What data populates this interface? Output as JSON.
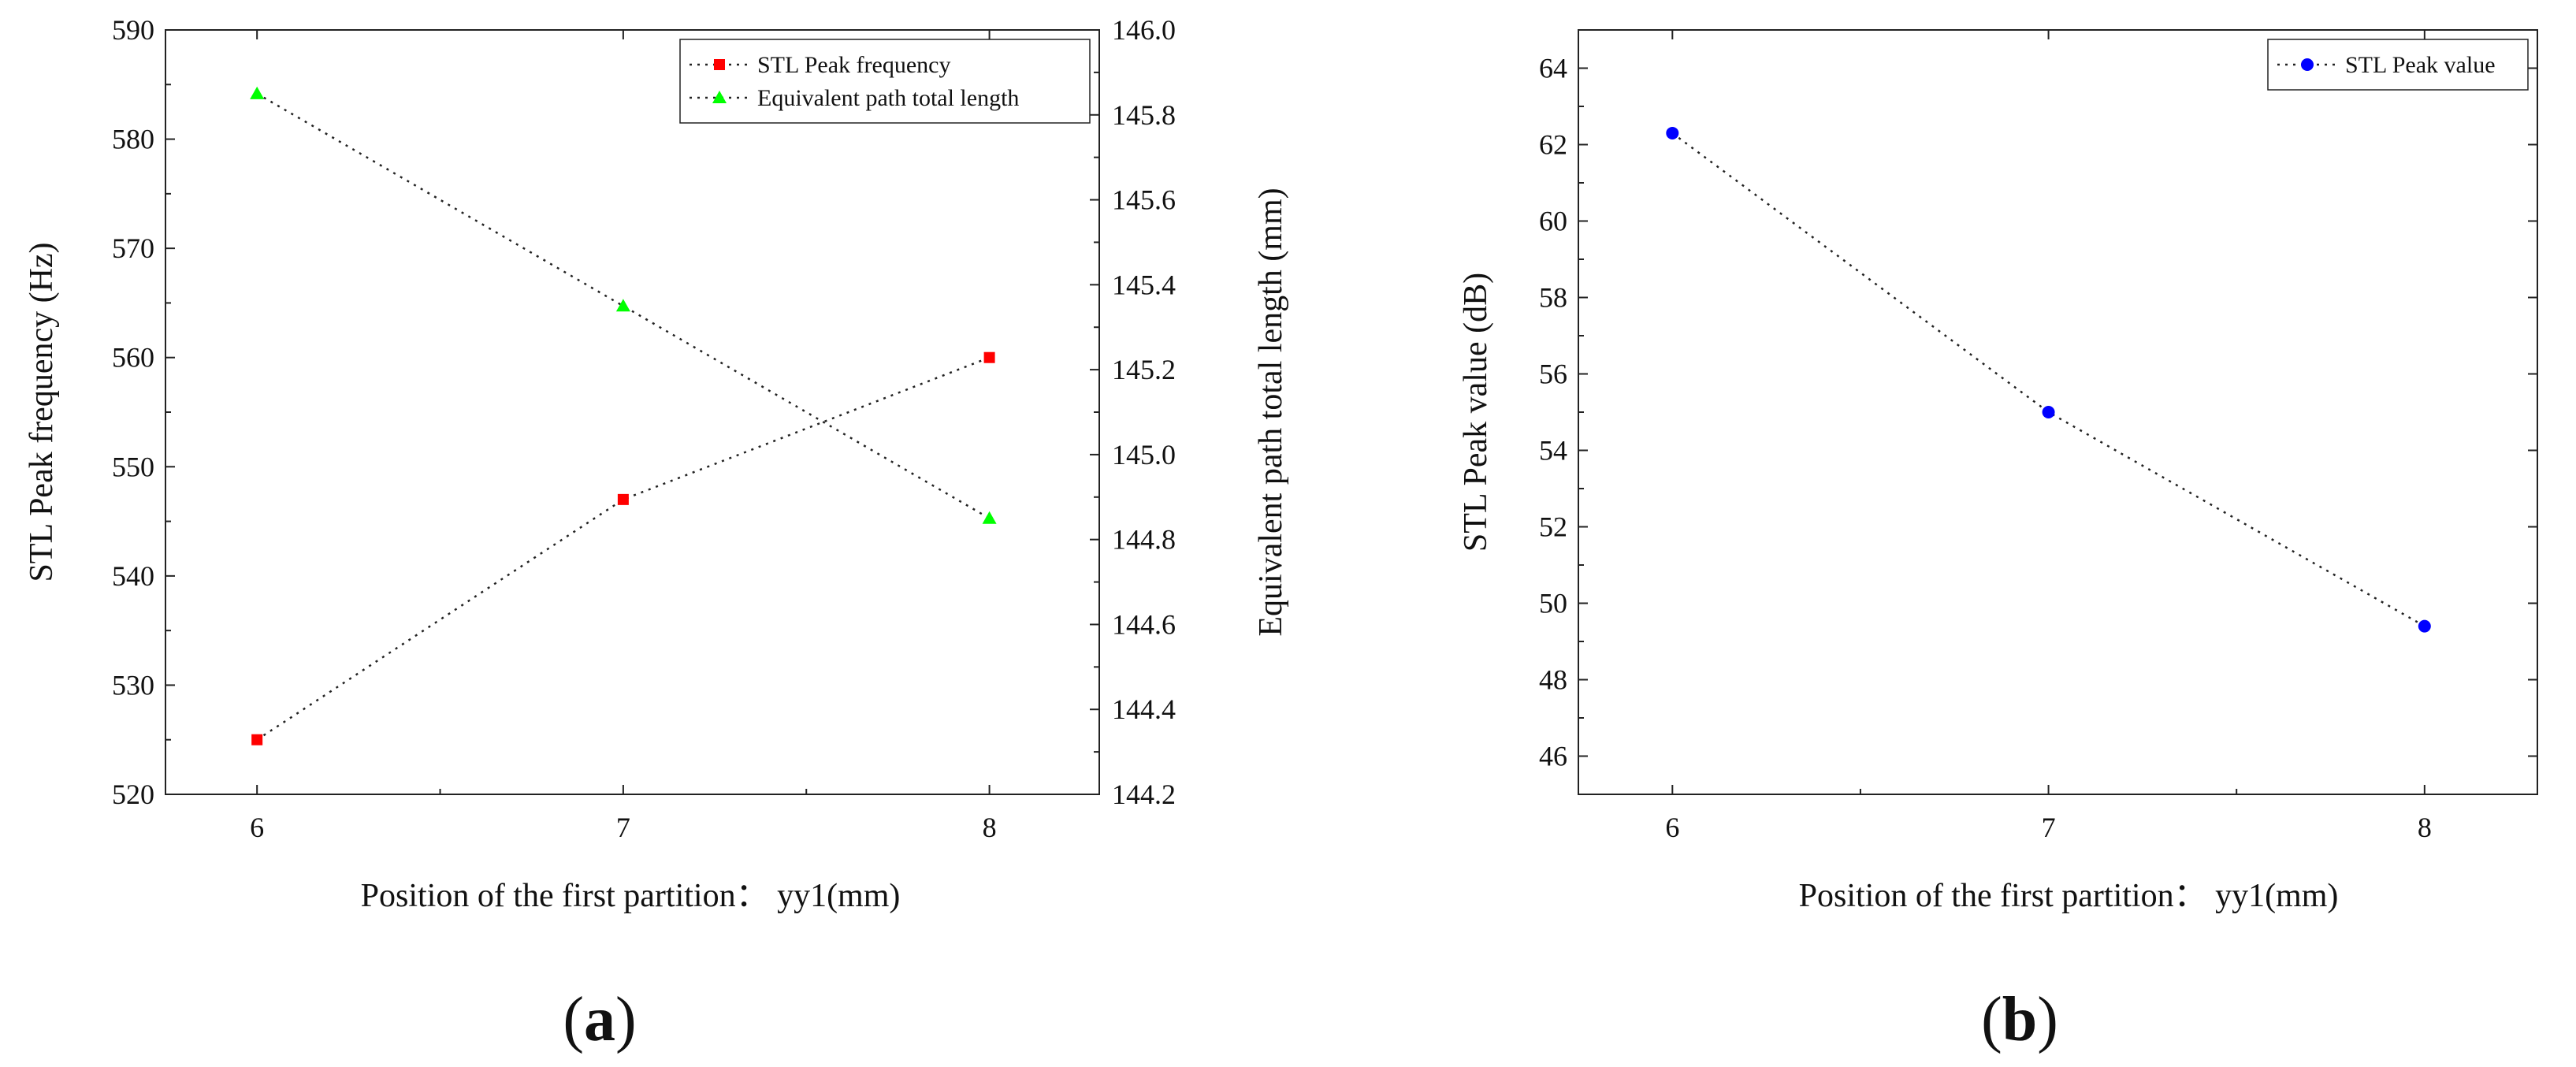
{
  "chart_data": [
    {
      "type": "line",
      "panel_label": "a",
      "xlabel": "Position of the first partition： yy1(mm)",
      "x": [
        6,
        7,
        8
      ],
      "x_ticks": [
        6,
        7,
        8
      ],
      "xlim": [
        5.75,
        8.3
      ],
      "ylabel": "STL Peak frequency (Hz)",
      "ylim": [
        520,
        590
      ],
      "y_ticks": [
        520,
        530,
        540,
        550,
        560,
        570,
        580,
        590
      ],
      "y2label": "Equivalent path total length (mm)",
      "y2lim": [
        144.2,
        146.0
      ],
      "y2_ticks": [
        "144.2",
        "144.4",
        "144.6",
        "144.8",
        "145.0",
        "145.2",
        "145.4",
        "145.6",
        "145.8",
        "146.0"
      ],
      "legend_position": "top-right",
      "grid": false,
      "series": [
        {
          "name": "STL Peak frequency",
          "axis": "left",
          "marker": "square",
          "color": "#ff0000",
          "values": [
            525,
            547,
            560
          ]
        },
        {
          "name": "Equivalent path total length",
          "axis": "right",
          "marker": "triangle",
          "color": "#00ff00",
          "values": [
            145.85,
            145.35,
            144.85
          ]
        }
      ]
    },
    {
      "type": "line",
      "panel_label": "b",
      "xlabel": "Position of the first partition： yy1(mm)",
      "x": [
        6,
        7,
        8
      ],
      "x_ticks": [
        6,
        7,
        8
      ],
      "xlim": [
        5.75,
        8.3
      ],
      "ylabel": "STL Peak value (dB)",
      "ylim": [
        45,
        65
      ],
      "y_ticks": [
        46,
        48,
        50,
        52,
        54,
        56,
        58,
        60,
        62,
        64
      ],
      "legend_position": "top-right",
      "grid": false,
      "series": [
        {
          "name": "STL Peak value",
          "axis": "left",
          "marker": "circle",
          "color": "#0000ff",
          "values": [
            62.3,
            55.0,
            49.4
          ]
        }
      ]
    }
  ]
}
